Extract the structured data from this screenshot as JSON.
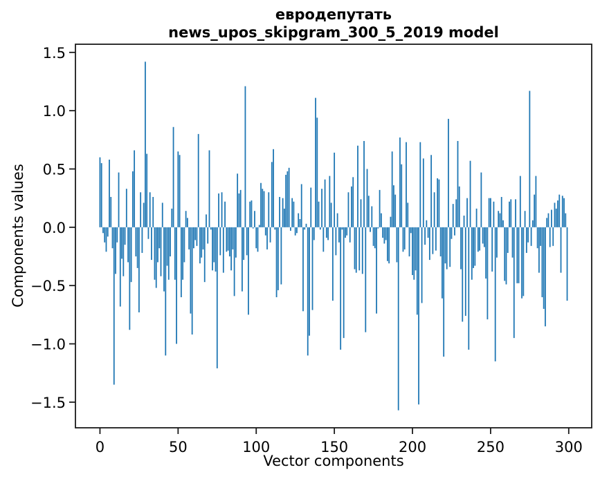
{
  "figure": {
    "title_line1": "евродепутать",
    "title_line2": "news_upos_skipgram_300_5_2019 model",
    "xlabel": "Vector components",
    "ylabel": "Components values"
  },
  "chart_data": {
    "type": "bar",
    "title": "евродепутать — news_upos_skipgram_300_5_2019 model",
    "xlabel": "Vector components",
    "ylabel": "Components values",
    "legend": null,
    "grid": false,
    "bar_color": "#1f77b4",
    "axis_color": "#1a1a1a",
    "tick_label_color": "#000000",
    "xlim": [
      -15.7,
      314.7
    ],
    "ylim": [
      -1.72,
      1.57
    ],
    "xticks": [
      0,
      50,
      100,
      150,
      200,
      250,
      300
    ],
    "xtick_labels": [
      "0",
      "50",
      "100",
      "150",
      "200",
      "250",
      "300"
    ],
    "ytick_values": [
      1.5,
      1.0,
      0.5,
      0.0,
      -0.5,
      -1.0,
      -1.5
    ],
    "ytick_labels": [
      "1.5",
      "1.0",
      "0.5",
      "0.0",
      "−0.5",
      "−1.0",
      "−1.5"
    ],
    "x_start": 0,
    "values": [
      0.6,
      0.55,
      -0.05,
      -0.13,
      -0.21,
      -0.08,
      0.58,
      0.26,
      -0.18,
      -1.35,
      -0.4,
      -0.13,
      0.47,
      -0.68,
      -0.27,
      -0.42,
      -0.15,
      0.33,
      -0.3,
      -0.88,
      -0.47,
      0.48,
      0.66,
      -0.25,
      -0.35,
      -0.73,
      0.3,
      -0.22,
      0.21,
      1.42,
      0.63,
      -0.1,
      0.3,
      -0.28,
      0.26,
      -0.45,
      -0.52,
      -0.3,
      -0.18,
      -0.42,
      0.21,
      -0.55,
      -1.1,
      -0.33,
      -0.45,
      -0.25,
      0.16,
      0.86,
      -0.45,
      -1.0,
      0.65,
      0.62,
      -0.6,
      -0.45,
      -0.3,
      0.14,
      0.08,
      -0.19,
      -0.74,
      -0.92,
      -0.18,
      -0.11,
      -0.16,
      0.8,
      -0.31,
      -0.26,
      -0.19,
      -0.47,
      0.11,
      -0.14,
      0.66,
      -0.02,
      -0.37,
      -0.3,
      -0.38,
      -1.21,
      0.29,
      -0.24,
      0.3,
      -0.39,
      0.22,
      -0.21,
      -0.2,
      -0.25,
      -0.37,
      -0.19,
      -0.59,
      -0.26,
      0.46,
      0.29,
      0.32,
      -0.55,
      -0.28,
      1.21,
      -0.24,
      -0.75,
      0.22,
      0.23,
      -0.01,
      0.14,
      -0.18,
      -0.21,
      0.02,
      0.38,
      0.33,
      0.31,
      -0.07,
      -0.19,
      0.3,
      -0.13,
      0.56,
      0.67,
      -0.02,
      -0.6,
      -0.54,
      0.26,
      -0.49,
      0.25,
      0.16,
      0.45,
      0.48,
      0.51,
      -0.03,
      0.25,
      0.22,
      -0.07,
      -0.05,
      0.12,
      0.07,
      0.37,
      -0.72,
      -0.02,
      0.03,
      -1.1,
      -0.93,
      0.34,
      -0.71,
      -0.11,
      1.11,
      0.94,
      0.22,
      -0.02,
      0.33,
      -0.21,
      0.41,
      -0.09,
      -0.11,
      0.44,
      0.21,
      -0.63,
      0.64,
      -0.24,
      0.12,
      -0.13,
      -1.05,
      -0.02,
      -0.95,
      -0.09,
      -0.07,
      0.3,
      -0.13,
      0.35,
      0.43,
      -0.36,
      -0.39,
      0.7,
      -0.37,
      0.24,
      -0.4,
      0.74,
      -0.9,
      0.5,
      0.27,
      -0.04,
      0.18,
      -0.16,
      -0.18,
      -0.74,
      -0.01,
      0.32,
      0.12,
      -0.09,
      -0.14,
      -0.11,
      -0.29,
      -0.31,
      0.09,
      0.65,
      0.36,
      0.28,
      -0.3,
      -1.57,
      0.77,
      0.54,
      -0.21,
      -0.19,
      0.73,
      0.21,
      -0.25,
      -0.05,
      -0.41,
      -0.45,
      -0.37,
      -0.75,
      -1.52,
      0.73,
      -0.65,
      0.59,
      -0.15,
      0.06,
      -0.09,
      -0.28,
      0.62,
      -0.23,
      0.3,
      -0.2,
      0.42,
      0.41,
      -0.25,
      -0.61,
      -1.11,
      -0.31,
      -0.36,
      0.93,
      -0.34,
      -0.1,
      0.2,
      -0.07,
      0.24,
      0.74,
      0.35,
      -0.36,
      -0.81,
      0.1,
      -0.76,
      0.25,
      -1.05,
      0.57,
      -0.45,
      -0.35,
      -0.33,
      0.16,
      -0.21,
      -0.2,
      0.47,
      -0.14,
      -0.17,
      -0.44,
      -0.79,
      0.25,
      0.25,
      -0.38,
      0.22,
      -1.15,
      -0.26,
      0.14,
      0.12,
      0.26,
      0.06,
      -0.46,
      -0.49,
      -0.22,
      0.22,
      0.24,
      -0.26,
      -0.95,
      0.24,
      -0.48,
      -0.48,
      0.44,
      -0.61,
      -0.59,
      0.14,
      -0.22,
      -0.13,
      1.17,
      -0.16,
      0.06,
      0.28,
      0.44,
      -0.18,
      -0.39,
      -0.16,
      -0.6,
      -0.7,
      -0.85,
      0.08,
      0.12,
      -0.17,
      0.15,
      -0.16,
      0.21,
      0.16,
      0.23,
      0.28,
      -0.39,
      0.27,
      0.25,
      0.12,
      -0.63
    ]
  }
}
